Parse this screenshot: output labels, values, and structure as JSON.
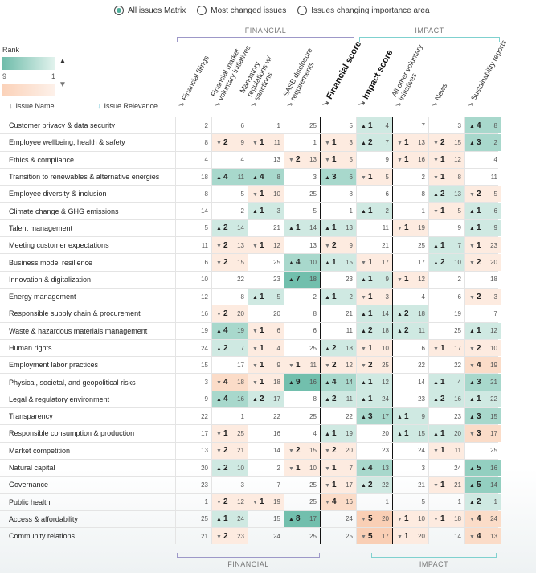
{
  "view_options": [
    {
      "label": "All issues Matrix",
      "selected": true
    },
    {
      "label": "Most changed issues",
      "selected": false
    },
    {
      "label": "Issues changing importance area",
      "selected": false
    }
  ],
  "groups": {
    "financial": "FINANCIAL",
    "impact": "IMPACT",
    "financial_color": "#9d98c8",
    "impact_color": "#7fd1cf"
  },
  "legend": {
    "title": "Rank",
    "min": "9",
    "max": "1",
    "up_icon": "triangle-up",
    "down_icon": "triangle-down",
    "up_color": "#6fbcaa",
    "down_color": "#fbd2b9"
  },
  "sort_headers": {
    "issue_name": "Issue Name",
    "issue_relevance": "Issue Relevance"
  },
  "columns": [
    "Financial filings",
    "Financial market voluntary initiatives",
    "Mandatory regulations w/ sanctions",
    "SASB disclosure requirements",
    "Financial score",
    "Impact score",
    "All other voluntary initiatives",
    "News",
    "Sustainability reports"
  ],
  "rows": [
    {
      "name": "Customer privacy & data security",
      "cells": [
        [
          0,
          2
        ],
        [
          0,
          6
        ],
        [
          0,
          1
        ],
        [
          0,
          25
        ],
        [
          0,
          5
        ],
        [
          1,
          4
        ],
        [
          0,
          7
        ],
        [
          0,
          3
        ],
        [
          4,
          8
        ]
      ]
    },
    {
      "name": "Employee wellbeing, health & safety",
      "cells": [
        [
          0,
          8
        ],
        [
          -2,
          9
        ],
        [
          -1,
          11
        ],
        [
          0,
          1
        ],
        [
          -1,
          3
        ],
        [
          2,
          7
        ],
        [
          -1,
          13
        ],
        [
          -2,
          15
        ],
        [
          3,
          2
        ]
      ]
    },
    {
      "name": "Ethics & compliance",
      "cells": [
        [
          0,
          4
        ],
        [
          0,
          4
        ],
        [
          0,
          13
        ],
        [
          -2,
          13
        ],
        [
          -1,
          5
        ],
        [
          0,
          9
        ],
        [
          -1,
          16
        ],
        [
          -1,
          12
        ],
        [
          0,
          4
        ]
      ]
    },
    {
      "name": "Transition to renewables & alternative energies",
      "cells": [
        [
          0,
          18
        ],
        [
          4,
          11
        ],
        [
          4,
          8
        ],
        [
          0,
          3
        ],
        [
          3,
          6
        ],
        [
          -1,
          5
        ],
        [
          0,
          2
        ],
        [
          -1,
          8
        ],
        [
          0,
          11
        ]
      ]
    },
    {
      "name": "Employee diversity & inclusion",
      "cells": [
        [
          0,
          8
        ],
        [
          0,
          5
        ],
        [
          -1,
          10
        ],
        [
          0,
          25
        ],
        [
          0,
          8
        ],
        [
          0,
          6
        ],
        [
          0,
          8
        ],
        [
          2,
          13
        ],
        [
          -2,
          5
        ]
      ]
    },
    {
      "name": "Climate change & GHG emissions",
      "cells": [
        [
          0,
          14
        ],
        [
          0,
          2
        ],
        [
          1,
          3
        ],
        [
          0,
          5
        ],
        [
          0,
          1
        ],
        [
          1,
          2
        ],
        [
          0,
          1
        ],
        [
          -1,
          5
        ],
        [
          1,
          6
        ]
      ]
    },
    {
      "name": "Talent management",
      "cells": [
        [
          0,
          5
        ],
        [
          2,
          14
        ],
        [
          0,
          21
        ],
        [
          1,
          14
        ],
        [
          1,
          13
        ],
        [
          0,
          11
        ],
        [
          -1,
          19
        ],
        [
          0,
          9
        ],
        [
          1,
          9
        ]
      ]
    },
    {
      "name": "Meeting customer expectations",
      "cells": [
        [
          0,
          11
        ],
        [
          -2,
          13
        ],
        [
          -1,
          12
        ],
        [
          0,
          13
        ],
        [
          -2,
          9
        ],
        [
          0,
          21
        ],
        [
          0,
          25
        ],
        [
          1,
          7
        ],
        [
          -1,
          23
        ]
      ]
    },
    {
      "name": "Business model resilience",
      "cells": [
        [
          0,
          6
        ],
        [
          -2,
          15
        ],
        [
          0,
          25
        ],
        [
          4,
          10
        ],
        [
          1,
          15
        ],
        [
          -1,
          17
        ],
        [
          0,
          17
        ],
        [
          2,
          10
        ],
        [
          -2,
          20
        ]
      ]
    },
    {
      "name": "Innovation & digitalization",
      "cells": [
        [
          0,
          10
        ],
        [
          0,
          22
        ],
        [
          0,
          23
        ],
        [
          7,
          18
        ],
        [
          0,
          23
        ],
        [
          1,
          9
        ],
        [
          -1,
          12
        ],
        [
          0,
          2
        ],
        [
          0,
          18
        ]
      ]
    },
    {
      "name": "Energy management",
      "cells": [
        [
          0,
          12
        ],
        [
          0,
          8
        ],
        [
          1,
          5
        ],
        [
          0,
          2
        ],
        [
          1,
          2
        ],
        [
          -1,
          3
        ],
        [
          0,
          4
        ],
        [
          0,
          6
        ],
        [
          -2,
          3
        ]
      ]
    },
    {
      "name": "Responsible supply chain & procurement",
      "cells": [
        [
          0,
          16
        ],
        [
          -2,
          20
        ],
        [
          0,
          20
        ],
        [
          0,
          8
        ],
        [
          0,
          21
        ],
        [
          1,
          14
        ],
        [
          2,
          18
        ],
        [
          0,
          19
        ],
        [
          0,
          7
        ]
      ]
    },
    {
      "name": "Waste & hazardous materials management",
      "cells": [
        [
          0,
          19
        ],
        [
          4,
          19
        ],
        [
          -1,
          6
        ],
        [
          0,
          6
        ],
        [
          0,
          11
        ],
        [
          2,
          18
        ],
        [
          2,
          11
        ],
        [
          0,
          25
        ],
        [
          1,
          12
        ]
      ]
    },
    {
      "name": "Human rights",
      "cells": [
        [
          0,
          24
        ],
        [
          2,
          7
        ],
        [
          -1,
          4
        ],
        [
          0,
          25
        ],
        [
          2,
          18
        ],
        [
          -1,
          10
        ],
        [
          0,
          6
        ],
        [
          -1,
          17
        ],
        [
          -2,
          10
        ]
      ]
    },
    {
      "name": "Employment labor practices",
      "cells": [
        [
          0,
          15
        ],
        [
          0,
          17
        ],
        [
          -1,
          9
        ],
        [
          -1,
          11
        ],
        [
          -2,
          12
        ],
        [
          -2,
          25
        ],
        [
          0,
          22
        ],
        [
          0,
          22
        ],
        [
          -4,
          19
        ]
      ]
    },
    {
      "name": "Physical, societal, and geopolitical risks",
      "cells": [
        [
          0,
          3
        ],
        [
          -4,
          18
        ],
        [
          -1,
          18
        ],
        [
          9,
          16
        ],
        [
          4,
          14
        ],
        [
          1,
          12
        ],
        [
          0,
          14
        ],
        [
          1,
          4
        ],
        [
          3,
          21
        ]
      ]
    },
    {
      "name": "Legal & regulatory environment",
      "cells": [
        [
          0,
          9
        ],
        [
          4,
          16
        ],
        [
          2,
          17
        ],
        [
          0,
          8
        ],
        [
          2,
          11
        ],
        [
          1,
          24
        ],
        [
          0,
          23
        ],
        [
          2,
          16
        ],
        [
          1,
          22
        ]
      ]
    },
    {
      "name": "Transparency",
      "cells": [
        [
          0,
          22
        ],
        [
          0,
          1
        ],
        [
          0,
          22
        ],
        [
          0,
          25
        ],
        [
          0,
          22
        ],
        [
          3,
          17
        ],
        [
          1,
          9
        ],
        [
          0,
          23
        ],
        [
          3,
          15
        ]
      ]
    },
    {
      "name": "Responsible consumption & production",
      "cells": [
        [
          0,
          17
        ],
        [
          -1,
          25
        ],
        [
          0,
          16
        ],
        [
          0,
          4
        ],
        [
          1,
          19
        ],
        [
          0,
          20
        ],
        [
          1,
          15
        ],
        [
          1,
          20
        ],
        [
          -3,
          17
        ]
      ]
    },
    {
      "name": "Market competition",
      "cells": [
        [
          0,
          13
        ],
        [
          -2,
          21
        ],
        [
          0,
          14
        ],
        [
          -2,
          15
        ],
        [
          -2,
          20
        ],
        [
          0,
          23
        ],
        [
          0,
          24
        ],
        [
          -1,
          11
        ],
        [
          0,
          25
        ]
      ]
    },
    {
      "name": "Natural capital",
      "cells": [
        [
          0,
          20
        ],
        [
          2,
          10
        ],
        [
          0,
          2
        ],
        [
          -1,
          10
        ],
        [
          -1,
          7
        ],
        [
          4,
          13
        ],
        [
          0,
          3
        ],
        [
          0,
          24
        ],
        [
          5,
          16
        ]
      ]
    },
    {
      "name": "Governance",
      "cells": [
        [
          0,
          23
        ],
        [
          0,
          3
        ],
        [
          0,
          7
        ],
        [
          0,
          25
        ],
        [
          -1,
          17
        ],
        [
          2,
          22
        ],
        [
          0,
          21
        ],
        [
          -1,
          21
        ],
        [
          5,
          14
        ]
      ]
    },
    {
      "name": "Public health",
      "cells": [
        [
          0,
          1
        ],
        [
          -2,
          12
        ],
        [
          -1,
          19
        ],
        [
          0,
          25
        ],
        [
          -4,
          16
        ],
        [
          0,
          1
        ],
        [
          0,
          5
        ],
        [
          0,
          1
        ],
        [
          2,
          1
        ]
      ]
    },
    {
      "name": "Access & affordability",
      "cells": [
        [
          0,
          25
        ],
        [
          1,
          24
        ],
        [
          0,
          15
        ],
        [
          8,
          17
        ],
        [
          0,
          24
        ],
        [
          -5,
          20
        ],
        [
          -1,
          10
        ],
        [
          -1,
          18
        ],
        [
          -4,
          24
        ]
      ]
    },
    {
      "name": "Community relations",
      "cells": [
        [
          0,
          21
        ],
        [
          -2,
          23
        ],
        [
          0,
          24
        ],
        [
          0,
          25
        ],
        [
          0,
          25
        ],
        [
          -5,
          17
        ],
        [
          -1,
          20
        ],
        [
          0,
          14
        ],
        [
          -4,
          13
        ]
      ]
    }
  ]
}
